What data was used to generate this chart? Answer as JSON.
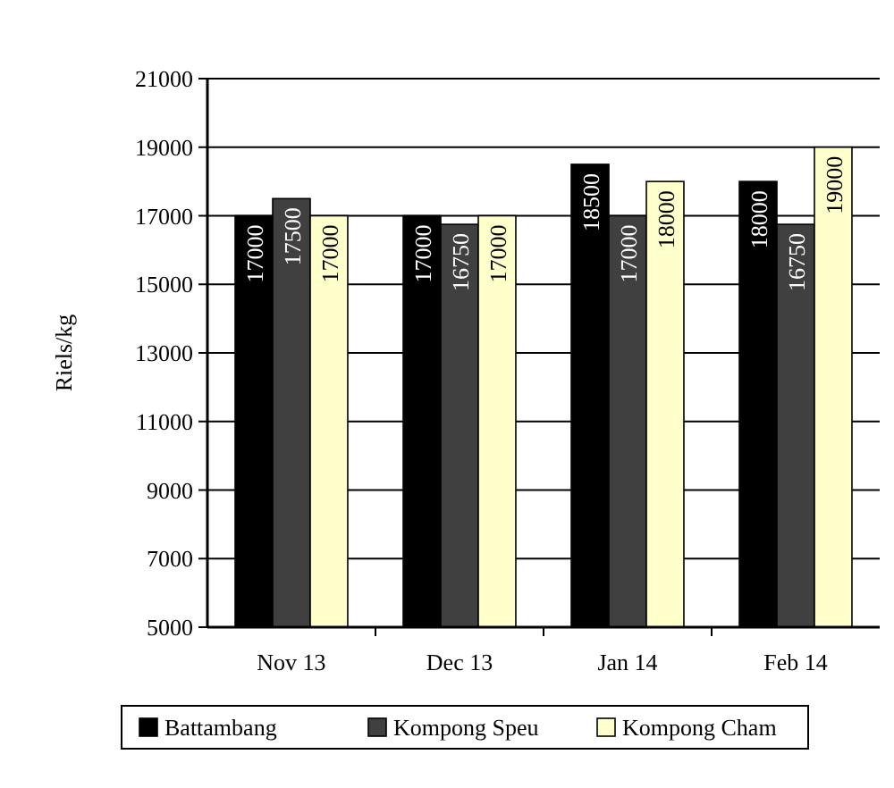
{
  "chart_data": {
    "type": "bar",
    "ylabel": "Riels/kg",
    "categories": [
      "Nov 13",
      "Dec 13",
      "Jan 14",
      "Feb 14"
    ],
    "series": [
      {
        "name": "Battambang",
        "color": "#000000",
        "values": [
          17000,
          17000,
          18500,
          18000
        ]
      },
      {
        "name": "Kompong Speu",
        "color": "#404040",
        "values": [
          17500,
          16750,
          17000,
          16750
        ]
      },
      {
        "name": "Kompong Cham",
        "color": "#ffffcc",
        "values": [
          17000,
          17000,
          18000,
          19000
        ]
      }
    ],
    "ylim": [
      5000,
      21000
    ],
    "yticks": [
      5000,
      7000,
      9000,
      11000,
      13000,
      15000,
      17000,
      19000,
      21000
    ],
    "grid": "y",
    "legend": "bottom",
    "data_labels": true
  }
}
